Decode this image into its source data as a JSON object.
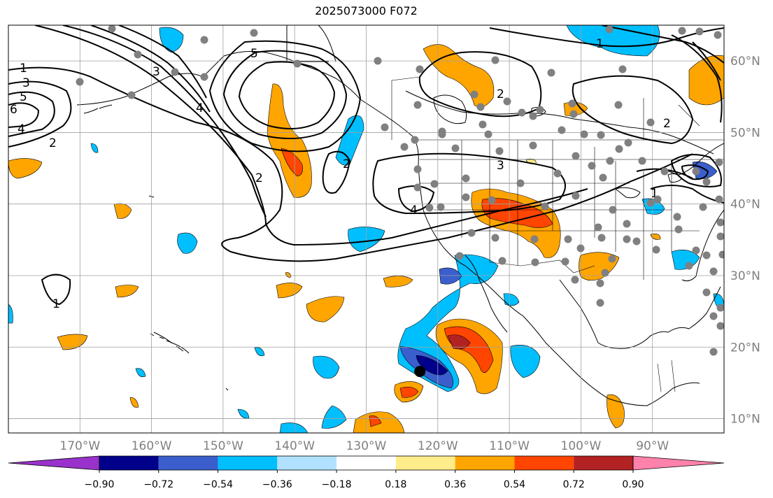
{
  "title": "2025073000 F072",
  "map": {
    "lon_range": [
      -180,
      -80
    ],
    "lat_range": [
      8,
      65
    ],
    "lon_ticks": [
      {
        "lon": -170,
        "label": "170°W"
      },
      {
        "lon": -160,
        "label": "160°W"
      },
      {
        "lon": -150,
        "label": "150°W"
      },
      {
        "lon": -140,
        "label": "140°W"
      },
      {
        "lon": -130,
        "label": "130°W"
      },
      {
        "lon": -120,
        "label": "120°W"
      },
      {
        "lon": -110,
        "label": "110°W"
      },
      {
        "lon": -100,
        "label": "100°W"
      },
      {
        "lon": -90,
        "label": "90°W"
      }
    ],
    "lat_ticks": [
      {
        "lat": 10,
        "label": "10°N"
      },
      {
        "lat": 20,
        "label": "20°N"
      },
      {
        "lat": 30,
        "label": "30°N"
      },
      {
        "lat": 40,
        "label": "40°N"
      },
      {
        "lat": 50,
        "label": "50°N"
      },
      {
        "lat": 60,
        "label": "60°N"
      }
    ],
    "gridlines": true,
    "contour_labels": [
      "1",
      "2",
      "3",
      "4",
      "5",
      "6"
    ],
    "marked_point": {
      "lon": -122.5,
      "lat": 16.6
    }
  },
  "colorbar": {
    "tick_labels": [
      "−0.90",
      "−0.72",
      "−0.54",
      "−0.36",
      "−0.18",
      "0.18",
      "0.36",
      "0.54",
      "0.72",
      "0.90"
    ],
    "bins": [
      {
        "color": "#9932cc"
      },
      {
        "color": "#00008b"
      },
      {
        "color": "#3a5fcd"
      },
      {
        "color": "#00bfff"
      },
      {
        "color": "#b0e2ff"
      },
      {
        "color": "#ffffff"
      },
      {
        "color": "#ffec8b"
      },
      {
        "color": "#ffa500"
      },
      {
        "color": "#ff4500"
      },
      {
        "color": "#b22222"
      },
      {
        "color": "#ff82ab"
      }
    ]
  }
}
